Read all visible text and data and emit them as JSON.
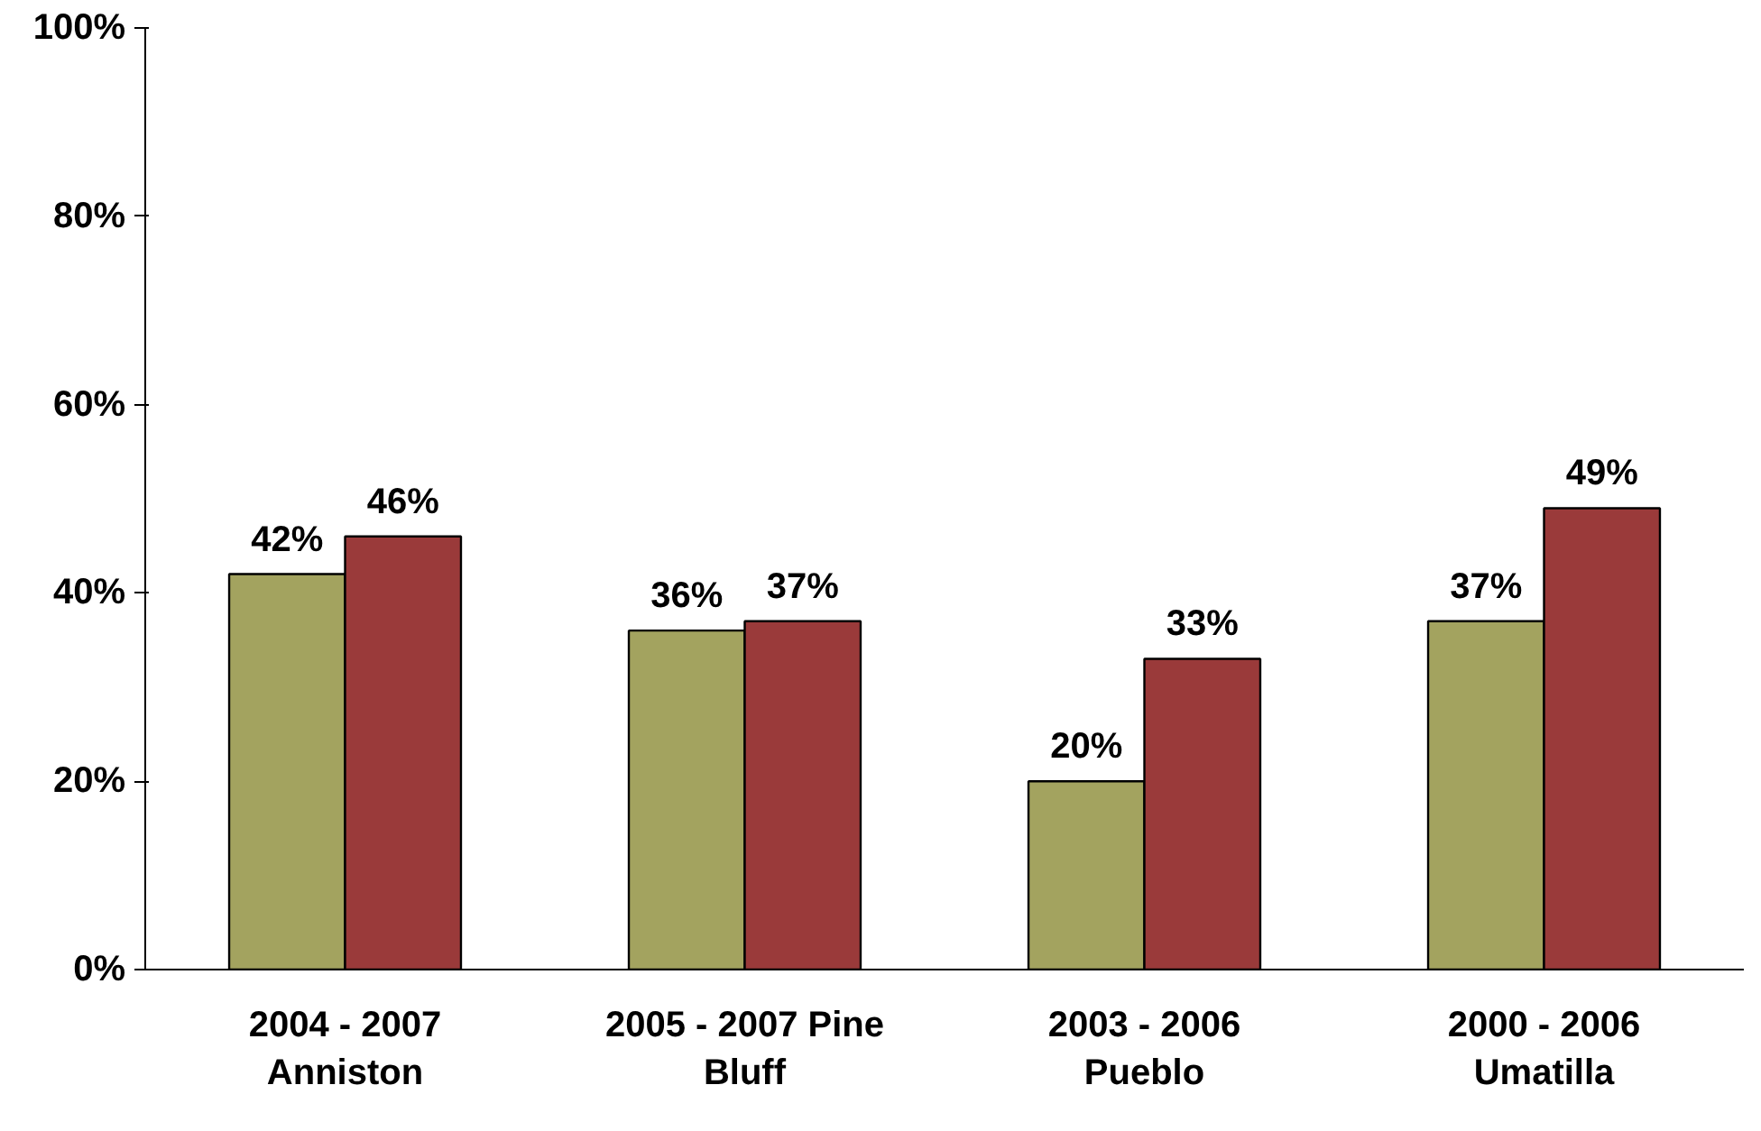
{
  "chart_data": {
    "type": "bar",
    "categories": [
      "2004 - 2007 Anniston",
      "2005 - 2007 Pine Bluff",
      "2003 - 2006 Pueblo",
      "2000 - 2006 Umatilla"
    ],
    "series": [
      {
        "color": "#a3a35f",
        "values": [
          42,
          36,
          20,
          37
        ],
        "value_labels": [
          "42%",
          "36%",
          "20%",
          "37%"
        ]
      },
      {
        "color": "#9a3a3a",
        "values": [
          46,
          37,
          33,
          49
        ],
        "value_labels": [
          "46%",
          "37%",
          "33%",
          "49%"
        ]
      }
    ],
    "ylim": [
      0,
      100
    ],
    "yticks": [
      {
        "value": 0,
        "label": "0%"
      },
      {
        "value": 20,
        "label": "20%"
      },
      {
        "value": 40,
        "label": "40%"
      },
      {
        "value": 60,
        "label": "60%"
      },
      {
        "value": 80,
        "label": "80%"
      },
      {
        "value": 100,
        "label": "100%"
      }
    ],
    "grid": false
  }
}
